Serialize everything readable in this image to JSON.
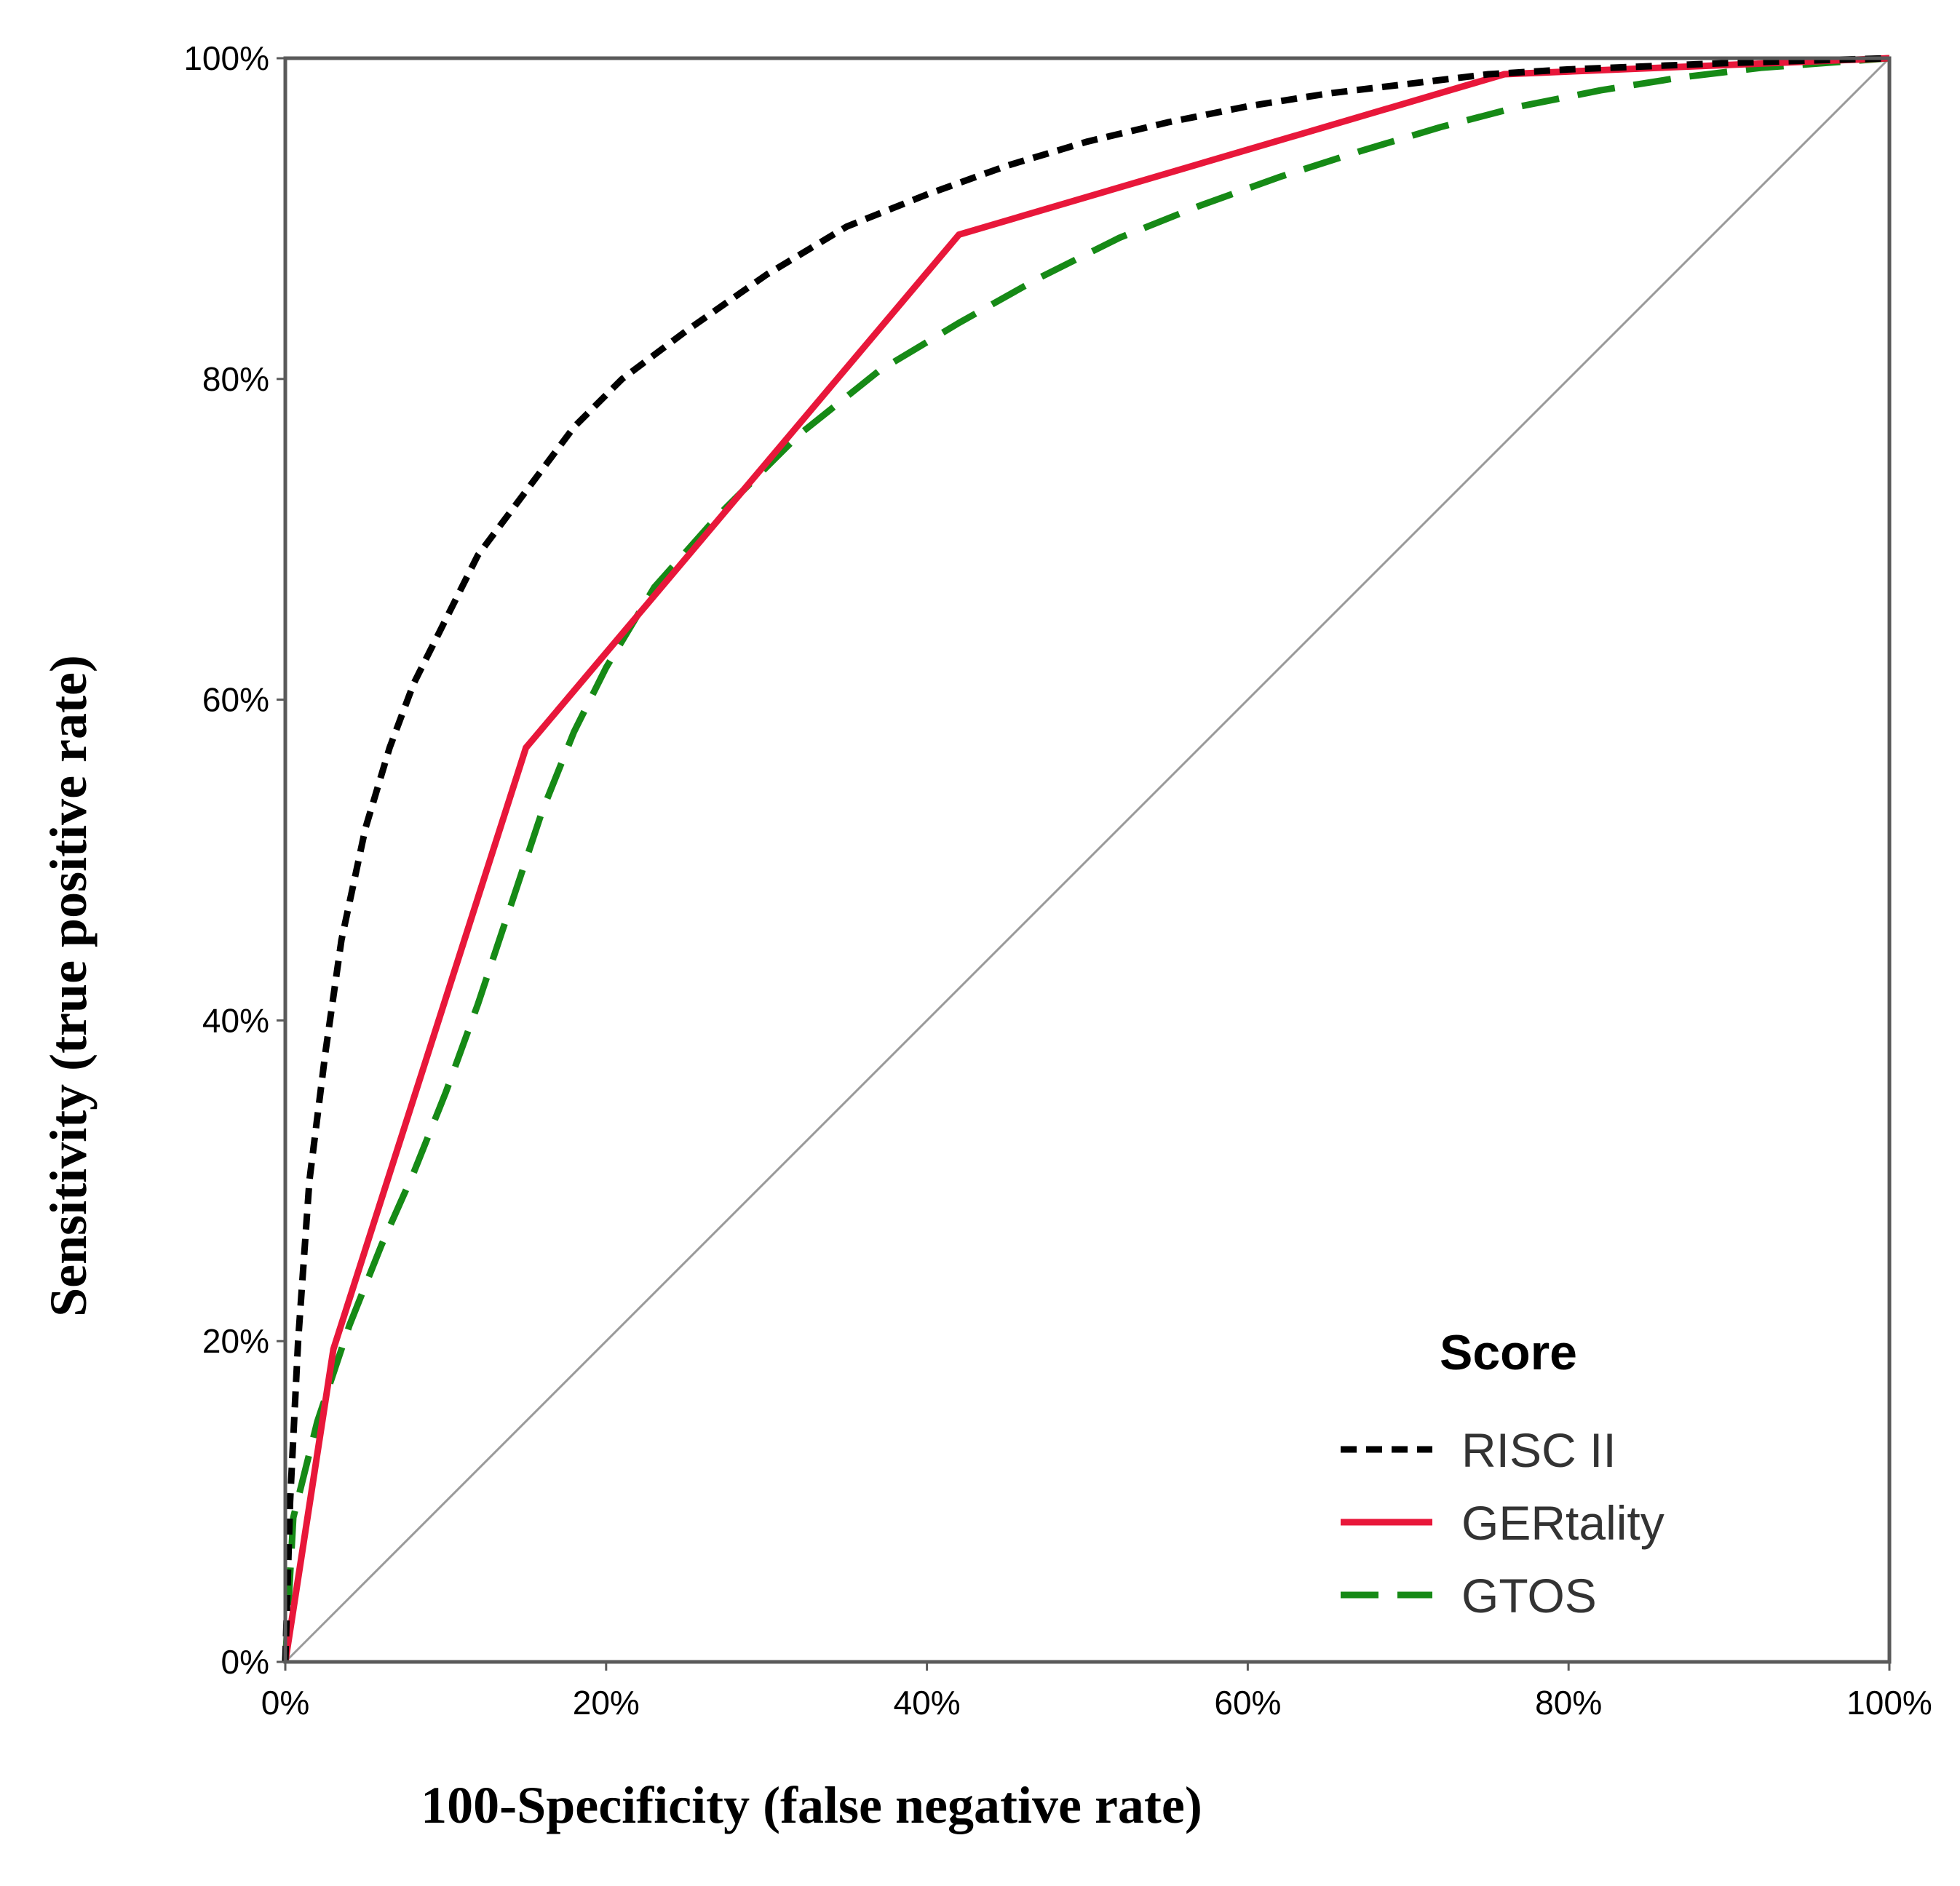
{
  "chart_data": {
    "type": "line",
    "title": "",
    "xlabel": "100-Specificity (false negative rate)",
    "ylabel": "Sensitivity (true positive rate)",
    "xlim": [
      0,
      100
    ],
    "ylim": [
      0,
      100
    ],
    "x_ticks": [
      {
        "value": 0,
        "label": "0%"
      },
      {
        "value": 20,
        "label": "20%"
      },
      {
        "value": 40,
        "label": "40%"
      },
      {
        "value": 60,
        "label": "60%"
      },
      {
        "value": 80,
        "label": "80%"
      },
      {
        "value": 100,
        "label": "100%"
      }
    ],
    "y_ticks": [
      {
        "value": 0,
        "label": "0%"
      },
      {
        "value": 20,
        "label": "20%"
      },
      {
        "value": 40,
        "label": "40%"
      },
      {
        "value": 60,
        "label": "60%"
      },
      {
        "value": 80,
        "label": "80%"
      },
      {
        "value": 100,
        "label": "100%"
      }
    ],
    "grid": false,
    "legend": {
      "title": "Score",
      "position": "bottom-right"
    },
    "reference_line": {
      "name": "chance diagonal",
      "x": [
        0,
        100
      ],
      "y": [
        0,
        100
      ],
      "color": "#9a9a9a"
    },
    "series": [
      {
        "name": "RISC II",
        "color": "#000000",
        "dash": "short-dash",
        "x": [
          0,
          0.3,
          0.8,
          1.5,
          2.5,
          3.5,
          5,
          6.5,
          8,
          10,
          12,
          15,
          18,
          21,
          25,
          30,
          35,
          40,
          45,
          50,
          55,
          60,
          65,
          70,
          75,
          80,
          90,
          100
        ],
        "y": [
          0,
          10,
          20,
          30,
          38,
          45,
          52,
          57,
          61,
          65,
          69,
          73,
          77,
          80,
          83,
          86.5,
          89.5,
          91.5,
          93.3,
          94.8,
          96,
          97,
          97.8,
          98.4,
          99,
          99.3,
          99.7,
          100
        ]
      },
      {
        "name": "GERtality",
        "color": "#e8173a",
        "dash": "solid",
        "x": [
          0,
          3,
          15,
          42,
          76,
          100
        ],
        "y": [
          0,
          19.5,
          57,
          89,
          99,
          100
        ]
      },
      {
        "name": "GTOS",
        "color": "#168a16",
        "dash": "long-dash",
        "x": [
          0,
          0.5,
          2,
          4,
          6,
          8,
          10,
          12,
          14,
          16,
          18,
          20,
          23,
          27,
          32,
          37,
          42,
          47,
          52,
          57,
          62,
          67,
          72,
          77,
          82,
          87,
          92,
          100
        ],
        "y": [
          0,
          9,
          15,
          21,
          26,
          30.5,
          35.5,
          41,
          47,
          53,
          58,
          62,
          67,
          71.5,
          76.5,
          80.5,
          83.5,
          86.3,
          88.8,
          90.8,
          92.6,
          94.2,
          95.7,
          97,
          98,
          98.8,
          99.4,
          100
        ]
      }
    ]
  }
}
